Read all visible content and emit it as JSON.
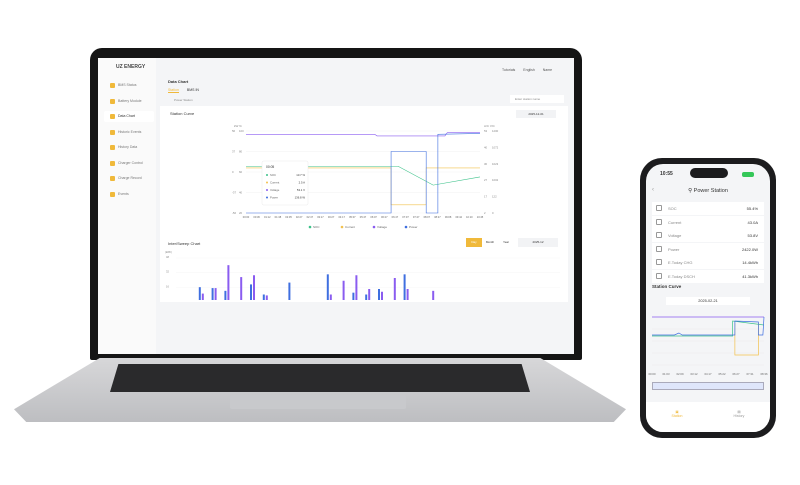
{
  "app": {
    "logo": "UZ ENERGY",
    "page_title": "Data Chart",
    "tabs": [
      "Station",
      "BMS IN"
    ],
    "station_selector": "Power Station",
    "header_links": [
      "Tutorials",
      "English",
      "Name"
    ],
    "search_placeholder": "Enter station name"
  },
  "sidebar": {
    "items": [
      {
        "label": "BMS Status"
      },
      {
        "label": "Battery Module"
      },
      {
        "label": "Data Chart",
        "active": true
      },
      {
        "label": "Historic Events"
      },
      {
        "label": "History Data"
      },
      {
        "label": "Charger Control"
      },
      {
        "label": "Charge Record"
      },
      {
        "label": "Events"
      }
    ]
  },
  "station_curve": {
    "title": "Station Curve",
    "date": "2025-12-01",
    "left_axis_units": [
      "kW",
      "%"
    ],
    "right_axis_units": [
      "A/C",
      "V/C"
    ],
    "left_ticks_a": [
      "56",
      "37",
      "0",
      "-37",
      "-56"
    ],
    "left_ticks_b": [
      "100",
      "80",
      "60",
      "40",
      "20"
    ],
    "right_ticks_a": [
      "53",
      "40",
      "30",
      "27",
      "17",
      "2"
    ],
    "right_ticks_b": [
      "1200",
      "1072",
      "1023",
      "1002",
      "122",
      "0"
    ],
    "x_labels": [
      "00:00",
      "00:36",
      "01:12",
      "01:38",
      "02:05",
      "02:27",
      "02:47",
      "03:17",
      "03:27",
      "04:17",
      "05:07",
      "05:47",
      "06:07",
      "06:27",
      "06:47",
      "07:07",
      "07:47",
      "08:07",
      "08:27",
      "09:08",
      "09:44",
      "10:10",
      "10:45"
    ],
    "tooltip": {
      "time": "00:05",
      "rows": [
        {
          "name": "SOC",
          "value": "13.7 %"
        },
        {
          "name": "Current",
          "value": "2.5 A"
        },
        {
          "name": "Voltage",
          "value": "53.1 V"
        },
        {
          "name": "Power",
          "value": "136.8 W"
        }
      ]
    },
    "legend": [
      {
        "name": "SOC",
        "color": "#3cc28a"
      },
      {
        "name": "Current",
        "color": "#f2c14e"
      },
      {
        "name": "Voltage",
        "color": "#8a5cf0"
      },
      {
        "name": "Power",
        "color": "#3f6fe0"
      }
    ]
  },
  "sweep_chart": {
    "title": "Inter/Sweep Chart",
    "unit": "(kWh)",
    "y_ticks": [
      "48",
      "32",
      "16"
    ],
    "periods": [
      "Day",
      "Month",
      "Year"
    ],
    "active_period": "Day",
    "date": "2025-12",
    "bars": [
      [
        0,
        0
      ],
      [
        14,
        7
      ],
      [
        13,
        13
      ],
      [
        10,
        38
      ],
      [
        0,
        25
      ],
      [
        17,
        27
      ],
      [
        6,
        5
      ],
      [
        0,
        0
      ],
      [
        19,
        0
      ],
      [
        0,
        0
      ],
      [
        0,
        0
      ],
      [
        28,
        6
      ],
      [
        0,
        21
      ],
      [
        8,
        27
      ],
      [
        6,
        12
      ],
      [
        12,
        9
      ],
      [
        0,
        24
      ],
      [
        28,
        12
      ],
      [
        0,
        0
      ],
      [
        0,
        10
      ]
    ],
    "colors": {
      "charge": "#3f6fe0",
      "discharge": "#8a5cf0"
    }
  },
  "phone": {
    "time": "10:55",
    "title": "Power Station",
    "rows": [
      {
        "label": "SOC",
        "value": "55.4%"
      },
      {
        "label": "Current",
        "value": "43.0A"
      },
      {
        "label": "Voltage",
        "value": "53.8V"
      },
      {
        "label": "Power",
        "value": "2422.0W"
      },
      {
        "label": "E.Today CHG",
        "value": "14.4kWh"
      },
      {
        "label": "E.Today DSCH",
        "value": "41.3kWh"
      }
    ],
    "curve_title": "Station Curve",
    "date": "2025-02-21",
    "x_labels": [
      "00:00",
      "01:03",
      "02:09",
      "03:12",
      "04:17",
      "05:22",
      "06:27",
      "07:31",
      "08:36"
    ],
    "tabs": [
      "Station",
      "History"
    ],
    "active_tab": "Station"
  },
  "accent": "#f0b93a"
}
